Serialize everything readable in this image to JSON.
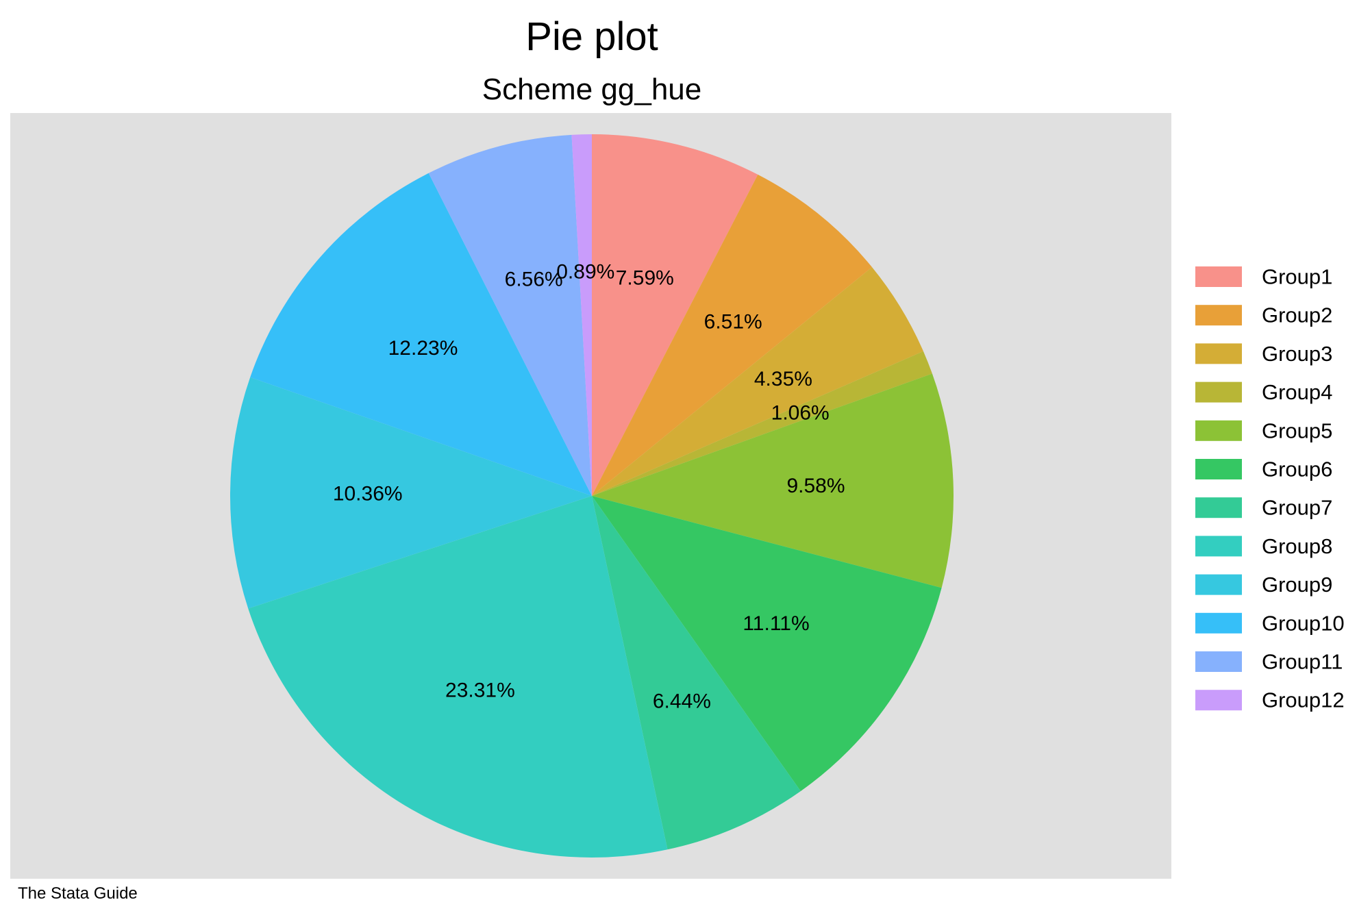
{
  "chart_data": {
    "type": "pie",
    "title": "Pie plot",
    "subtitle": "Scheme gg_hue",
    "note": "The Stata Guide",
    "legend_position": "right",
    "plot_background": "#e0e0e0",
    "start": "12 o'clock",
    "direction": "clockwise",
    "slices": [
      {
        "label": "Group1",
        "value": 7.59,
        "display": "7.59%",
        "color": "#f8918a"
      },
      {
        "label": "Group2",
        "value": 6.51,
        "display": "6.51%",
        "color": "#e8a038"
      },
      {
        "label": "Group3",
        "value": 4.35,
        "display": "4.35%",
        "color": "#d4ad36"
      },
      {
        "label": "Group4",
        "value": 1.06,
        "display": "1.06%",
        "color": "#b8b636"
      },
      {
        "label": "Group5",
        "value": 9.58,
        "display": "9.58%",
        "color": "#8cc236"
      },
      {
        "label": "Group6",
        "value": 11.11,
        "display": "11.11%",
        "color": "#35c763"
      },
      {
        "label": "Group7",
        "value": 6.44,
        "display": "6.44%",
        "color": "#33cb96"
      },
      {
        "label": "Group8",
        "value": 23.31,
        "display": "23.31%",
        "color": "#33cec0"
      },
      {
        "label": "Group9",
        "value": 10.36,
        "display": "10.36%",
        "color": "#36c8e0"
      },
      {
        "label": "Group10",
        "value": 12.23,
        "display": "12.23%",
        "color": "#36bff8"
      },
      {
        "label": "Group11",
        "value": 6.56,
        "display": "6.56%",
        "color": "#86b1fd"
      },
      {
        "label": "Group12",
        "value": 0.89,
        "display": "0.89%",
        "color": "#c99cfb"
      }
    ]
  }
}
